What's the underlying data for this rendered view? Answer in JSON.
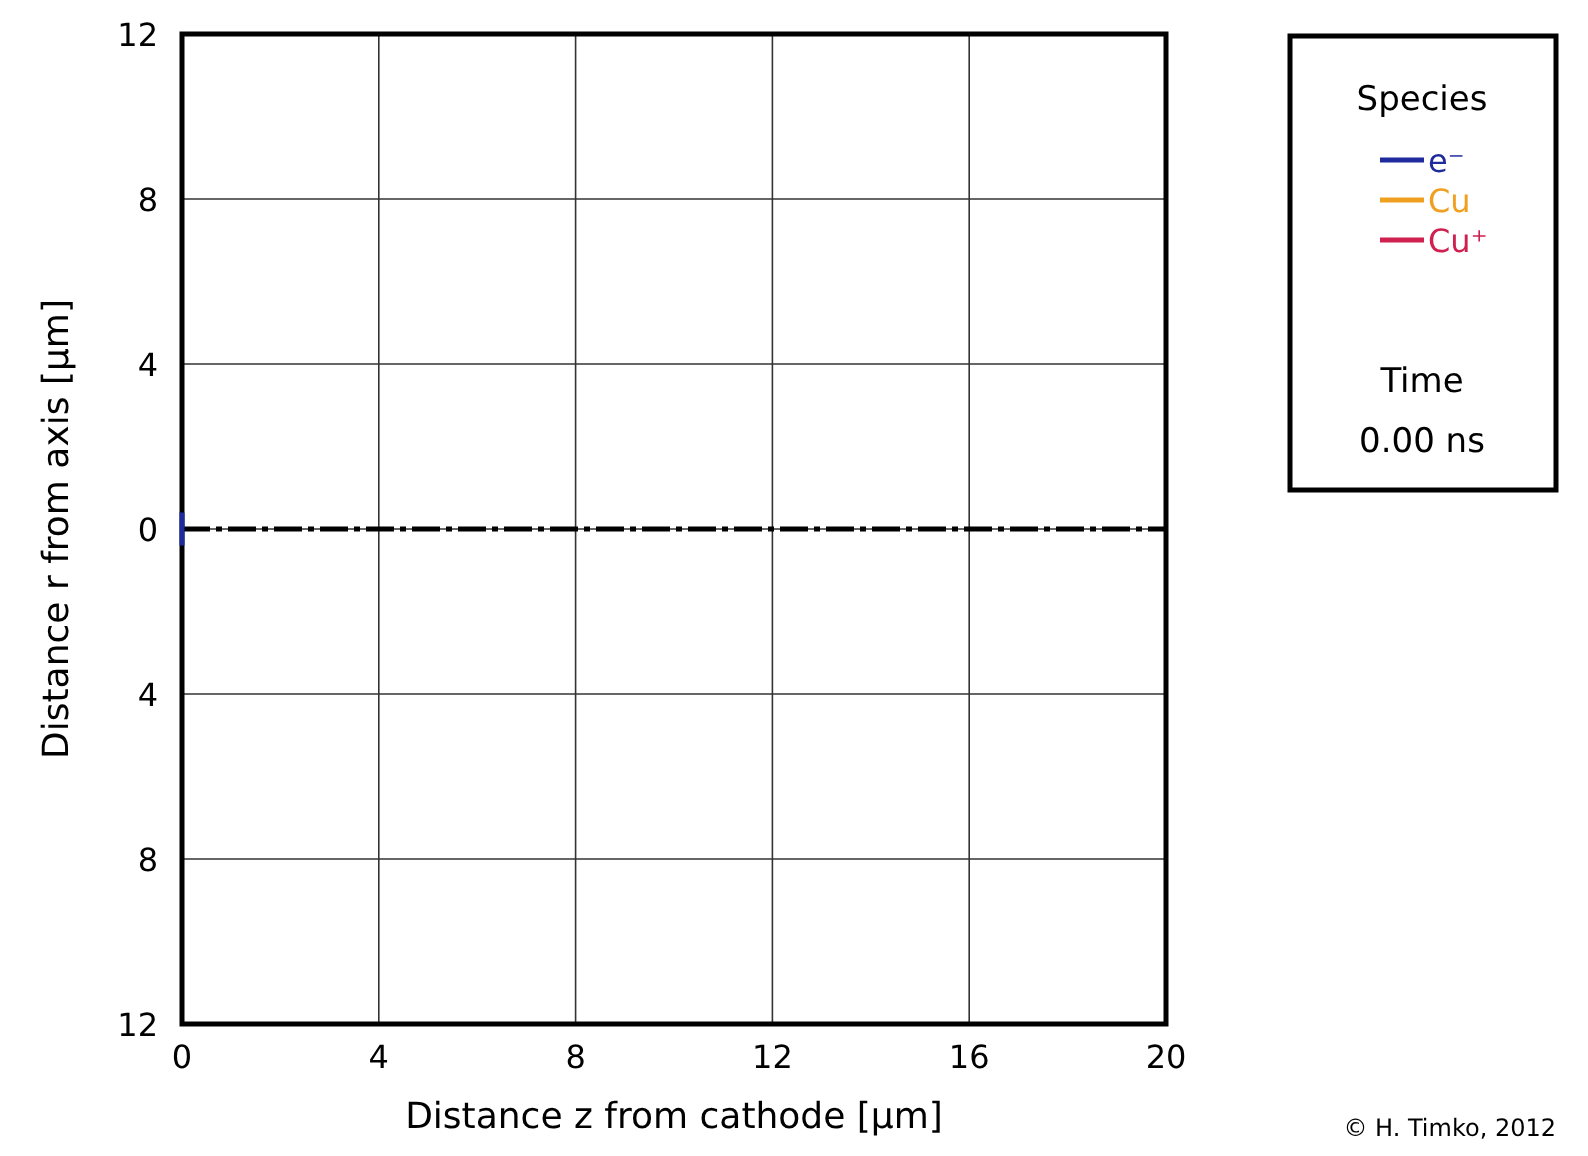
{
  "chart_data": {
    "type": "line",
    "xlabel": "Distance z from cathode [μm]",
    "ylabel": "Distance r from axis [μm]",
    "legend_title": "Species",
    "legend": "top right",
    "xlim": [
      0,
      20
    ],
    "ylim": [
      -12,
      12
    ],
    "xticks": [
      0,
      4,
      8,
      12,
      16,
      20
    ],
    "yticks": [
      {
        "value": -12,
        "label": "12"
      },
      {
        "value": -8,
        "label": "8"
      },
      {
        "value": -4,
        "label": "4"
      },
      0,
      4,
      8,
      12
    ],
    "grid": true,
    "series": [
      {
        "name": "e⁻",
        "color": "#1f2a9c",
        "x": [
          0,
          0
        ],
        "values": [
          -0.4,
          0.4
        ]
      },
      {
        "name": "Cu",
        "color": "#f0a020"
      },
      {
        "name": "Cu⁺",
        "color": "#d02050"
      }
    ],
    "ref_lines": [
      {
        "axis": "y",
        "value": 0,
        "color": "#000000",
        "line_style": "dashed"
      }
    ],
    "annotations": [
      "Time",
      "0.00 ns",
      "© H. Timko, 2012"
    ]
  }
}
